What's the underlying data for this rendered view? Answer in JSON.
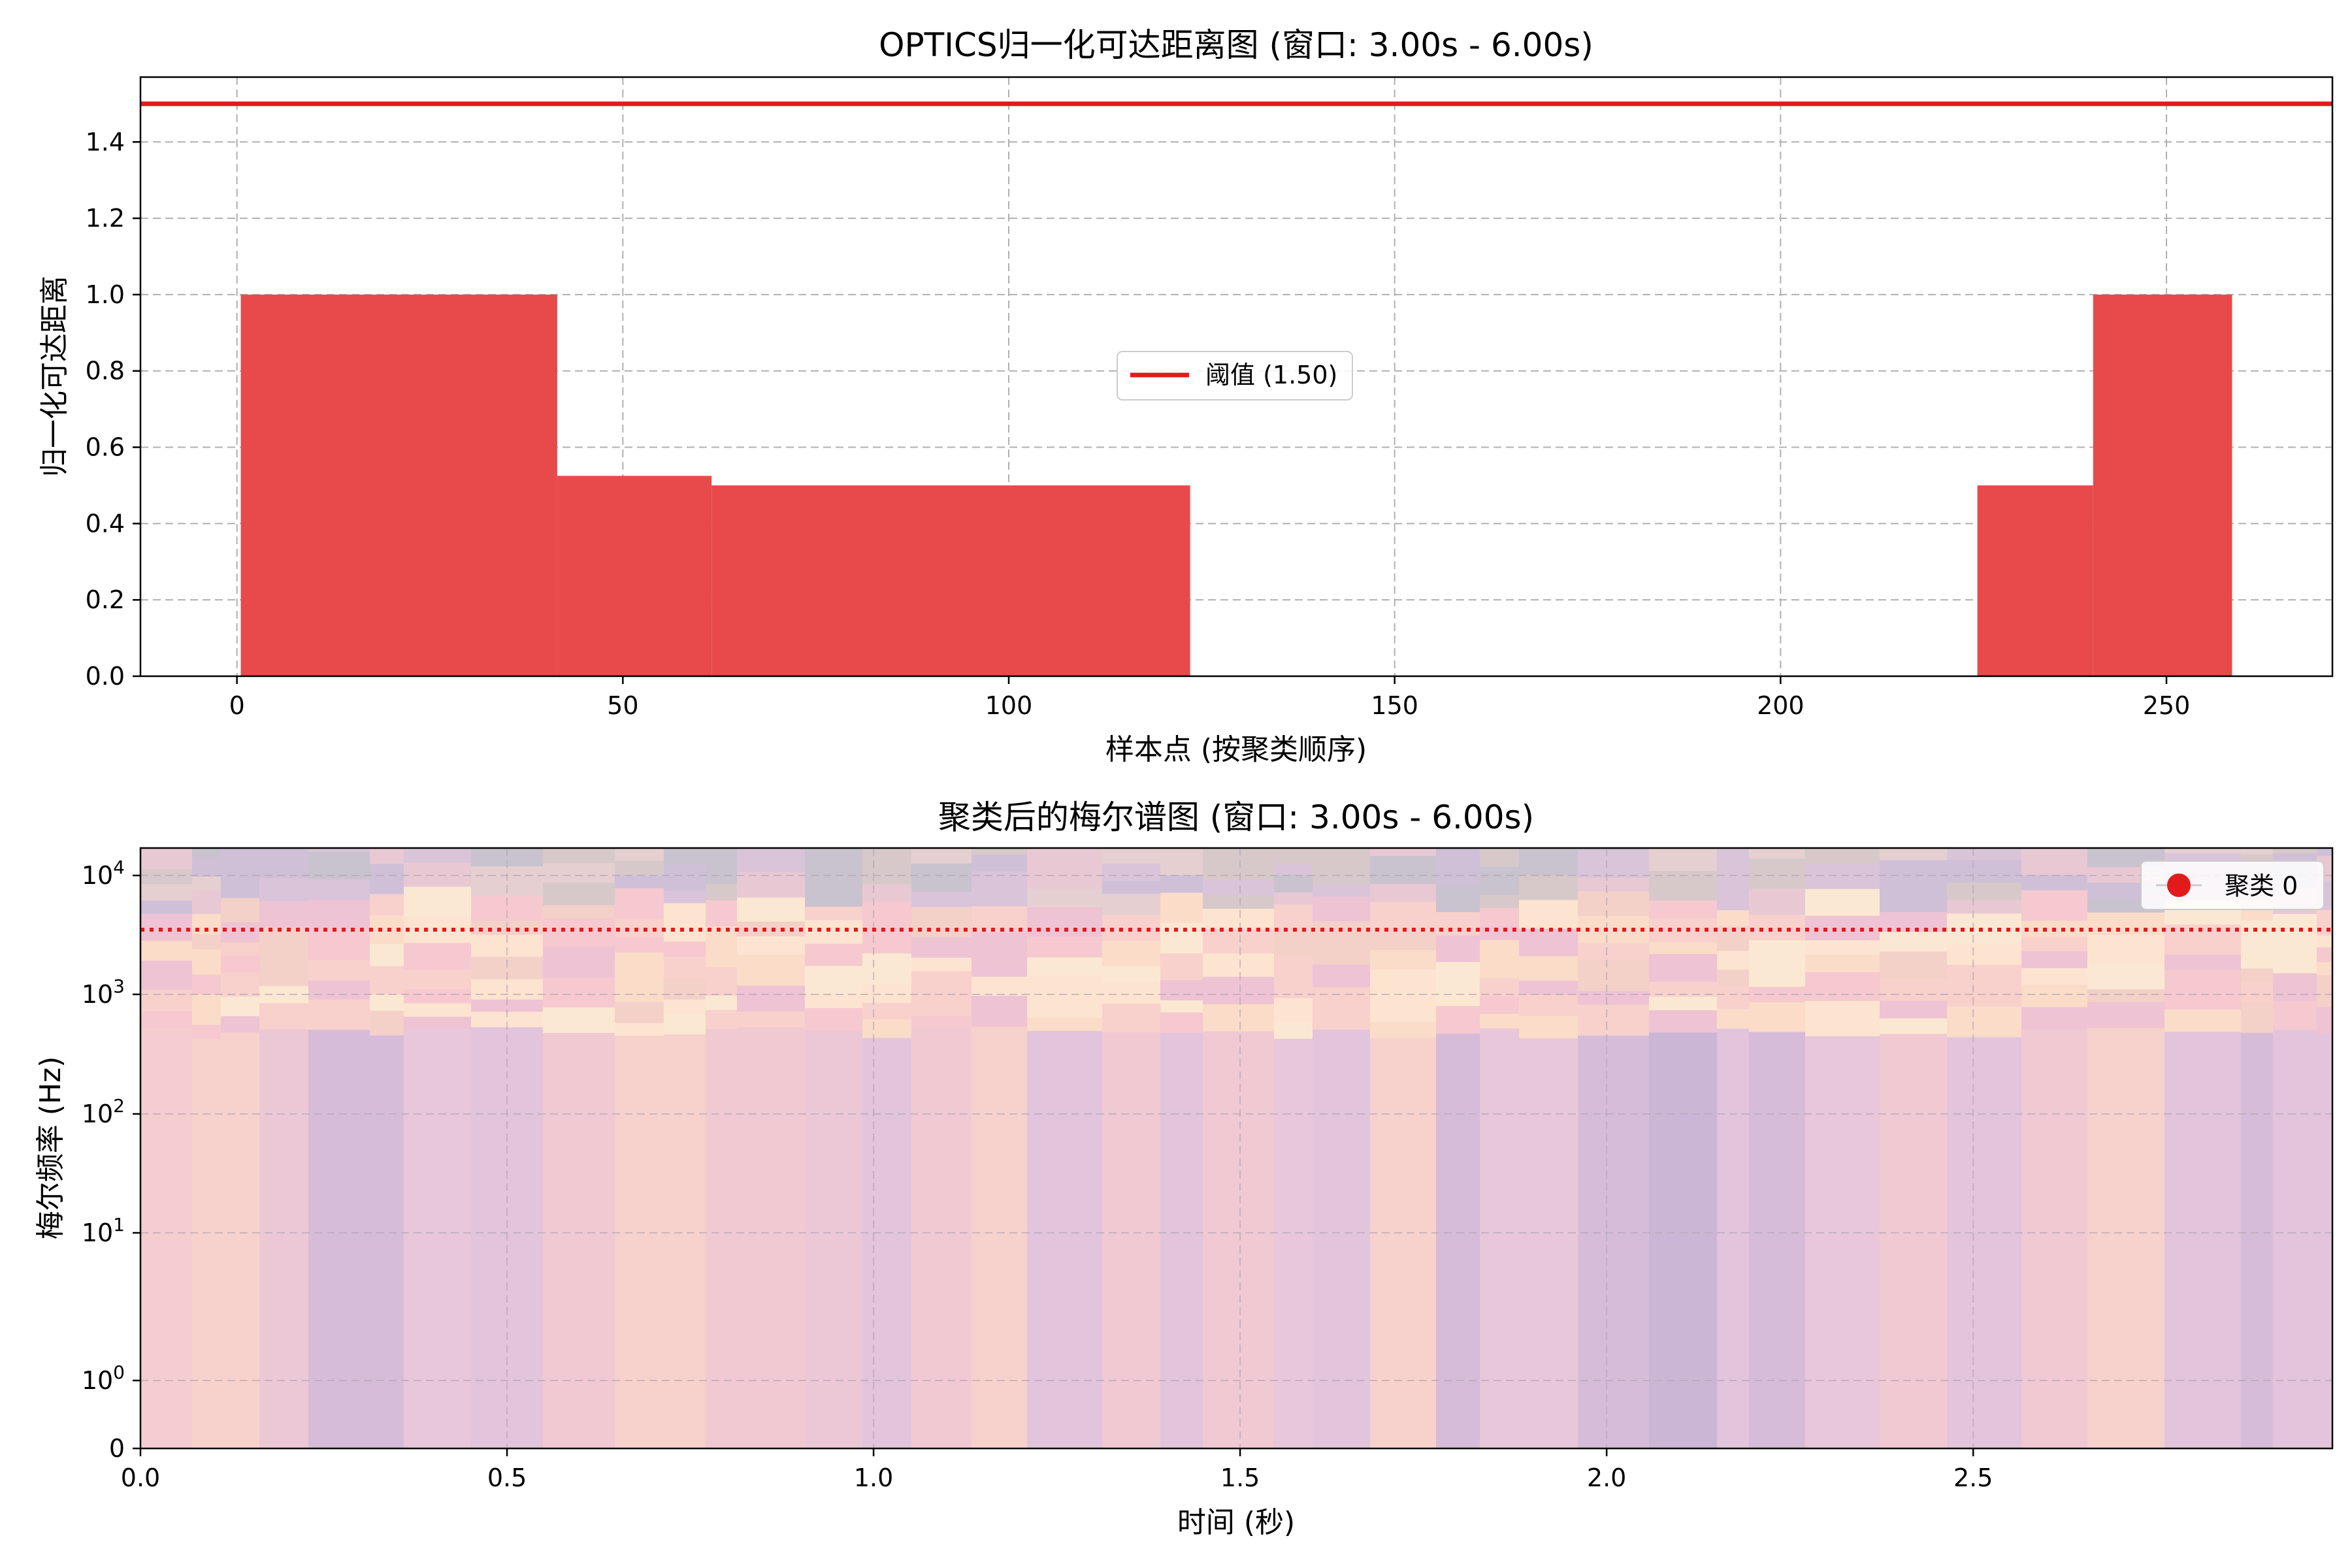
{
  "chart_data": [
    {
      "type": "bar",
      "title": "OPTICS归一化可达距离图 (窗口: 3.00s - 6.00s)",
      "xlabel": "样本点 (按聚类顺序)",
      "ylabel": "归一化可达距离",
      "xlim": [
        -12.5,
        271.5
      ],
      "ylim": [
        0,
        1.57
      ],
      "xticks": [
        0,
        50,
        100,
        150,
        200,
        250
      ],
      "xtick_labels": [
        "0",
        "50",
        "100",
        "150",
        "200",
        "250"
      ],
      "yticks": [
        0.0,
        0.2,
        0.4,
        0.6,
        0.8,
        1.0,
        1.2,
        1.4
      ],
      "ytick_labels": [
        "0.0",
        "0.2",
        "0.4",
        "0.6",
        "0.8",
        "1.0",
        "1.2",
        "1.4"
      ],
      "bar_color": "#e84a4b",
      "segments": [
        {
          "x_start": 0.5,
          "x_end": 41.5,
          "value": 1.0
        },
        {
          "x_start": 41.5,
          "x_end": 61.5,
          "value": 0.525
        },
        {
          "x_start": 61.5,
          "x_end": 123.5,
          "value": 0.5
        },
        {
          "x_start": 225.5,
          "x_end": 240.5,
          "value": 0.5
        },
        {
          "x_start": 240.5,
          "x_end": 258.5,
          "value": 1.0
        }
      ],
      "threshold": {
        "value": 1.5,
        "color": "#e31a1c",
        "label": "阈值 (1.50)"
      },
      "legend_position": "center",
      "grid": true
    },
    {
      "type": "heatmap",
      "title": "聚类后的梅尔谱图 (窗口: 3.00s - 6.00s)",
      "xlabel": "时间 (秒)",
      "ylabel": "梅尔频率 (Hz)",
      "xlim": [
        0,
        2.99
      ],
      "y_scale": "symlog",
      "yticks": [
        0,
        1,
        10,
        100,
        1000,
        10000
      ],
      "ytick_labels": [
        {
          "base": "0",
          "exp": ""
        },
        {
          "base": "10",
          "exp": "0"
        },
        {
          "base": "10",
          "exp": "1"
        },
        {
          "base": "10",
          "exp": "2"
        },
        {
          "base": "10",
          "exp": "3"
        },
        {
          "base": "10",
          "exp": "4"
        }
      ],
      "xticks": [
        0.0,
        0.5,
        1.0,
        1.5,
        2.0,
        2.5
      ],
      "xtick_labels": [
        "0.0",
        "0.5",
        "1.0",
        "1.5",
        "2.0",
        "2.5"
      ],
      "cluster_line": {
        "value": 3500,
        "color": "#e31a1c"
      },
      "legend": [
        {
          "label": "聚类 0",
          "color": "#e31a1c"
        }
      ],
      "legend_position": "top-right",
      "grid": true
    }
  ]
}
